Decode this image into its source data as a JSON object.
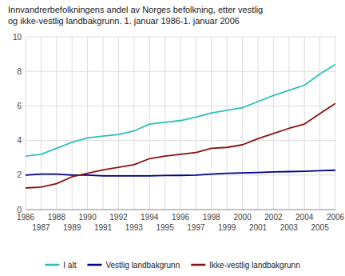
{
  "chart_data": {
    "type": "line",
    "title": "Innvandrerbefolkningens andel av Norges befolkning, etter vestlig\nog ikke-vestlig landbakgrunn. 1. januar 1986-1. januar 2006",
    "x": [
      1986,
      1987,
      1988,
      1989,
      1990,
      1991,
      1992,
      1993,
      1994,
      1995,
      1996,
      1997,
      1998,
      1999,
      2000,
      2001,
      2002,
      2003,
      2004,
      2005,
      2006
    ],
    "series": [
      {
        "name": "I alt",
        "color": "#2BBFBF",
        "values": [
          3.1,
          3.2,
          3.55,
          3.9,
          4.15,
          4.25,
          4.35,
          4.55,
          4.95,
          5.05,
          5.15,
          5.35,
          5.6,
          5.75,
          5.9,
          6.25,
          6.6,
          6.9,
          7.2,
          7.85,
          8.4
        ]
      },
      {
        "name": "Vestlig landbakgrunn",
        "color": "#00008B",
        "values": [
          2.0,
          2.05,
          2.05,
          2.0,
          2.0,
          1.95,
          1.95,
          1.95,
          1.95,
          1.97,
          1.98,
          2.0,
          2.05,
          2.1,
          2.12,
          2.15,
          2.18,
          2.2,
          2.22,
          2.25,
          2.28
        ]
      },
      {
        "name": "Ikke-vestlig landbakgrunn",
        "color": "#8B1010",
        "values": [
          1.25,
          1.3,
          1.5,
          1.9,
          2.1,
          2.3,
          2.45,
          2.6,
          2.95,
          3.1,
          3.2,
          3.3,
          3.55,
          3.6,
          3.75,
          4.1,
          4.4,
          4.7,
          4.95,
          5.55,
          6.15
        ]
      }
    ],
    "xlim": [
      1986,
      2006
    ],
    "xticks": [
      1986,
      1987,
      1988,
      1989,
      1990,
      1991,
      1992,
      1993,
      1994,
      1995,
      1996,
      1997,
      1998,
      1999,
      2000,
      2001,
      2002,
      2003,
      2004,
      2005,
      2006
    ],
    "ylim": [
      0,
      10
    ],
    "yticks": [
      0,
      2,
      4,
      6,
      8,
      10
    ],
    "grid": true,
    "legend": "bottom"
  }
}
